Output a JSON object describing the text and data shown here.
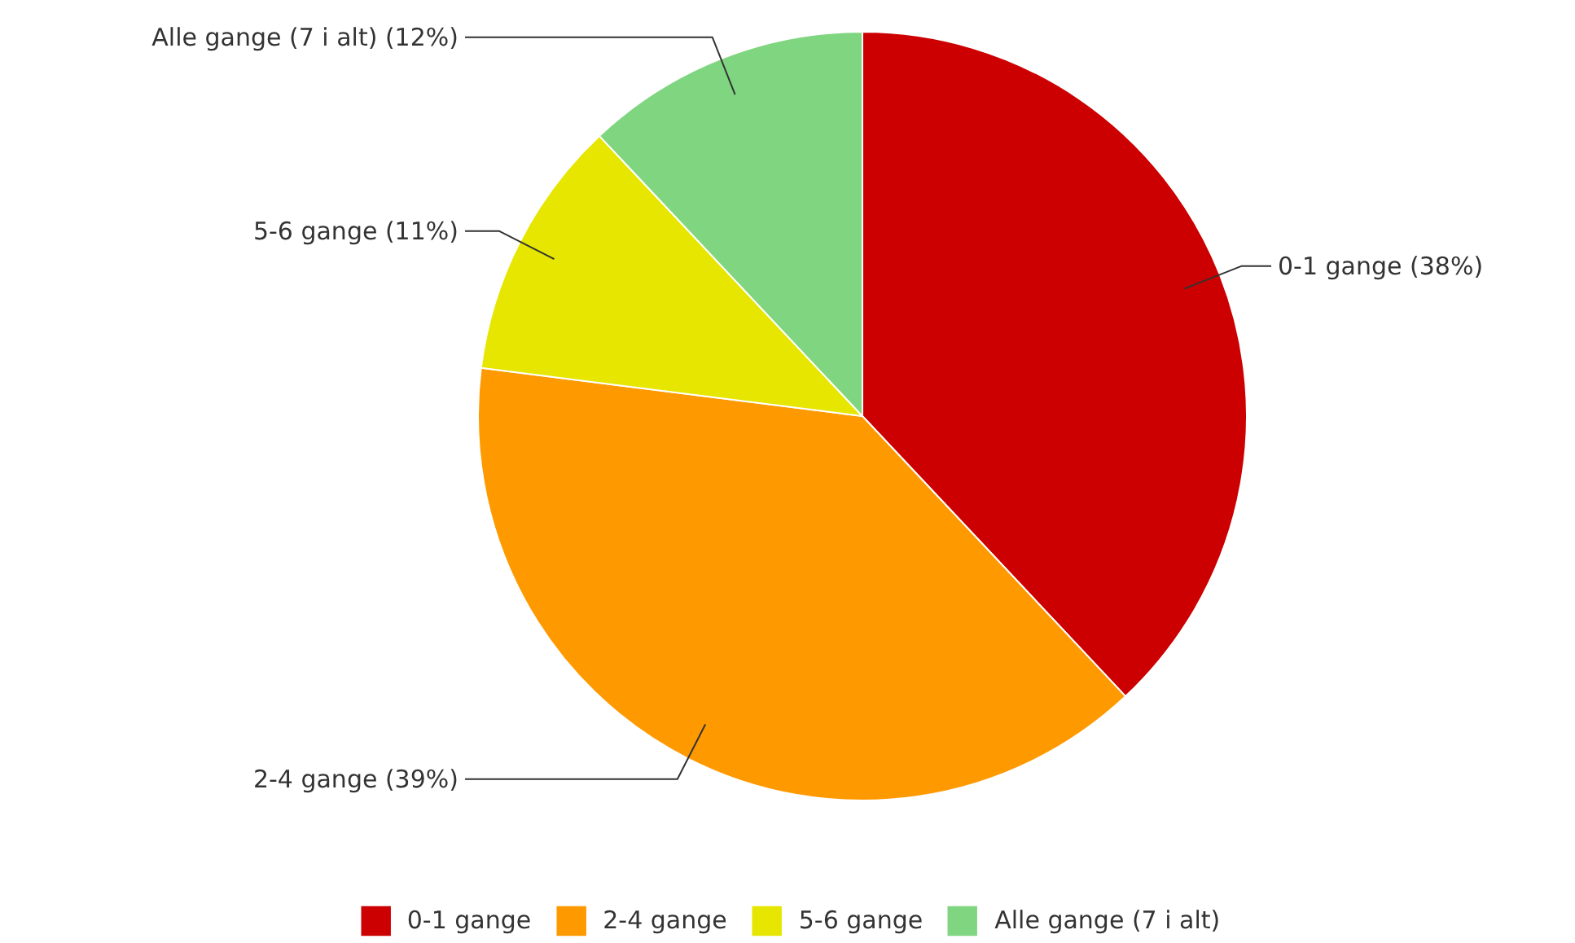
{
  "chart_data": {
    "type": "pie",
    "categories": [
      "0-1 gange",
      "2-4 gange",
      "5-6 gange",
      "Alle gange (7 i alt)"
    ],
    "values": [
      38,
      39,
      11,
      12
    ],
    "colors": [
      "#cc0000",
      "#ff9900",
      "#e6e600",
      "#80d680"
    ],
    "value_labels": [
      "0-1 gange (38%)",
      "2-4 gange (39%)",
      "5-6 gange (11%)",
      "Alle gange (7 i alt) (12%)"
    ],
    "legend": "bottom"
  }
}
